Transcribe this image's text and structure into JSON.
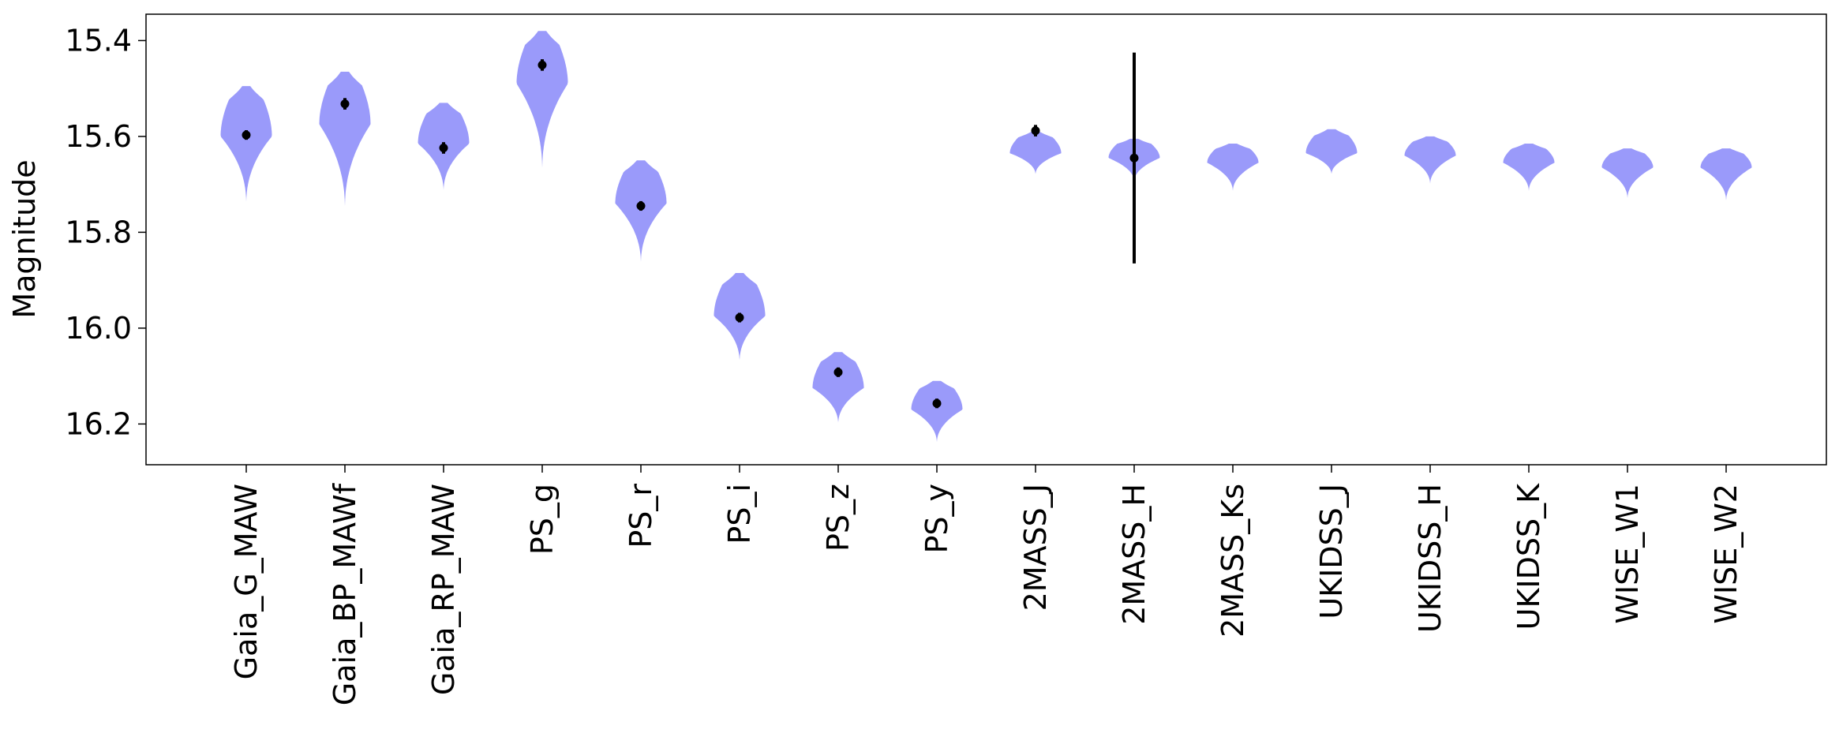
{
  "chart_data": {
    "type": "violin",
    "ylabel": "Magnitude",
    "xlabel": "",
    "ylim": [
      16.285,
      15.345
    ],
    "y_inverted": true,
    "yticks": [
      15.4,
      15.6,
      15.8,
      16.0,
      16.2
    ],
    "ytick_labels": [
      "15.4",
      "15.6",
      "15.8",
      "16.0",
      "16.2"
    ],
    "grid": false,
    "violin_color": "#9a9afa",
    "point_color": "#000000",
    "categories": [
      "Gaia_G_MAW",
      "Gaia_BP_MAWf",
      "Gaia_RP_MAW",
      "PS_g",
      "PS_r",
      "PS_i",
      "PS_z",
      "PS_y",
      "2MASS_J",
      "2MASS_H",
      "2MASS_Ks",
      "UKIDSS_J",
      "UKIDSS_H",
      "UKIDSS_K",
      "WISE_W1",
      "WISE_W2"
    ],
    "values": [
      15.597,
      15.532,
      15.624,
      15.451,
      15.745,
      15.978,
      16.092,
      16.157,
      15.588,
      15.645,
      null,
      null,
      null,
      null,
      null,
      null
    ],
    "errors": [
      0.01,
      0.012,
      0.012,
      0.012,
      0.01,
      0.01,
      0.01,
      0.01,
      0.012,
      0.22,
      null,
      null,
      null,
      null,
      null,
      null
    ],
    "violins": [
      {
        "top": 15.495,
        "bottom": 15.74,
        "bulge": 15.6,
        "max_width": 0.26
      },
      {
        "top": 15.465,
        "bottom": 15.75,
        "bulge": 15.575,
        "max_width": 0.26
      },
      {
        "top": 15.53,
        "bottom": 15.715,
        "bulge": 15.615,
        "max_width": 0.26
      },
      {
        "top": 15.38,
        "bottom": 15.67,
        "bulge": 15.49,
        "max_width": 0.26
      },
      {
        "top": 15.65,
        "bottom": 15.865,
        "bulge": 15.74,
        "max_width": 0.26
      },
      {
        "top": 15.885,
        "bottom": 16.07,
        "bulge": 15.975,
        "max_width": 0.26
      },
      {
        "top": 16.05,
        "bottom": 16.2,
        "bulge": 16.125,
        "max_width": 0.26
      },
      {
        "top": 16.11,
        "bottom": 16.24,
        "bulge": 16.17,
        "max_width": 0.26
      },
      {
        "top": 15.59,
        "bottom": 15.68,
        "bulge": 15.635,
        "max_width": 0.26
      },
      {
        "top": 15.605,
        "bottom": 15.695,
        "bulge": 15.645,
        "max_width": 0.26
      },
      {
        "top": 15.615,
        "bottom": 15.715,
        "bulge": 15.655,
        "max_width": 0.26
      },
      {
        "top": 15.585,
        "bottom": 15.68,
        "bulge": 15.635,
        "max_width": 0.26
      },
      {
        "top": 15.6,
        "bottom": 15.7,
        "bulge": 15.64,
        "max_width": 0.26
      },
      {
        "top": 15.615,
        "bottom": 15.715,
        "bulge": 15.655,
        "max_width": 0.26
      },
      {
        "top": 15.625,
        "bottom": 15.73,
        "bulge": 15.665,
        "max_width": 0.26
      },
      {
        "top": 15.625,
        "bottom": 15.735,
        "bulge": 15.665,
        "max_width": 0.26
      }
    ]
  }
}
